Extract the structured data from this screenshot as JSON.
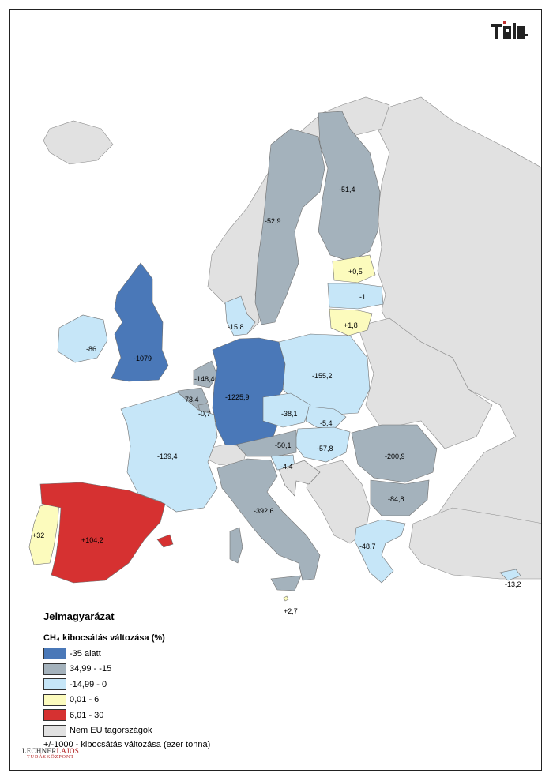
{
  "legend": {
    "title": "Jelmagyarázat",
    "subtitle": "CH₄ kibocsátás változása (%)",
    "items": [
      {
        "label": "-35 alatt",
        "color": "#4a78b8"
      },
      {
        "label": "34,99 - -15",
        "color": "#a4b2bc"
      },
      {
        "label": "-14,99 - 0",
        "color": "#c6e6f8"
      },
      {
        "label": "0,01 - 6",
        "color": "#fcfbbd"
      },
      {
        "label": "6,01 - 30",
        "color": "#d63131"
      },
      {
        "label": "Nem EU tagországok",
        "color": "#e1e1e1"
      }
    ],
    "note": "+/-1000 - kibocsátás változása (ezer tonna)"
  },
  "logo_bottom": {
    "part1": "LECHNER",
    "part2": "LAJOS",
    "sub": "TUDÁSKÖZPONT"
  },
  "logo_top": "TeIR",
  "countries": [
    {
      "id": "finland",
      "value": "-51,4",
      "class": "34,99 - -15"
    },
    {
      "id": "sweden",
      "value": "-52,9",
      "class": "34,99 - -15"
    },
    {
      "id": "estonia",
      "value": "+0,5",
      "class": "0,01 - 6"
    },
    {
      "id": "latvia",
      "value": "-1",
      "class": "-14,99 - 0"
    },
    {
      "id": "lithuania",
      "value": "+1,8",
      "class": "0,01 - 6"
    },
    {
      "id": "denmark",
      "value": "-15,8",
      "class": "-14,99 - 0"
    },
    {
      "id": "ireland",
      "value": "-86",
      "class": "-14,99 - 0"
    },
    {
      "id": "uk",
      "value": "-1079",
      "class": "-35 alatt"
    },
    {
      "id": "netherlands",
      "value": "-148,4",
      "class": "34,99 - -15"
    },
    {
      "id": "belgium",
      "value": "-78,4",
      "class": "34,99 - -15"
    },
    {
      "id": "luxembourg",
      "value": "-0,7",
      "class": "34,99 - -15"
    },
    {
      "id": "germany",
      "value": "-1225,9",
      "class": "-35 alatt"
    },
    {
      "id": "poland",
      "value": "-155,2",
      "class": "-14,99 - 0"
    },
    {
      "id": "czechia",
      "value": "-38,1",
      "class": "-14,99 - 0"
    },
    {
      "id": "slovakia",
      "value": "-5,4",
      "class": "-14,99 - 0"
    },
    {
      "id": "hungary",
      "value": "-57,8",
      "class": "-14,99 - 0"
    },
    {
      "id": "austria",
      "value": "-50,1",
      "class": "34,99 - -15"
    },
    {
      "id": "slovenia",
      "value": "-4,4",
      "class": "-14,99 - 0"
    },
    {
      "id": "france",
      "value": "-139,4",
      "class": "-14,99 - 0"
    },
    {
      "id": "italy",
      "value": "-392,6",
      "class": "34,99 - -15"
    },
    {
      "id": "romania",
      "value": "-200,9",
      "class": "34,99 - -15"
    },
    {
      "id": "bulgaria",
      "value": "-84,8",
      "class": "34,99 - -15"
    },
    {
      "id": "greece",
      "value": "-48,7",
      "class": "-14,99 - 0"
    },
    {
      "id": "cyprus",
      "value": "-13,2",
      "class": "-14,99 - 0"
    },
    {
      "id": "malta",
      "value": "+2,7",
      "class": "0,01 - 6"
    },
    {
      "id": "portugal",
      "value": "+32",
      "class": "0,01 - 6"
    },
    {
      "id": "spain",
      "value": "+104,2",
      "class": "6,01 - 30"
    }
  ]
}
